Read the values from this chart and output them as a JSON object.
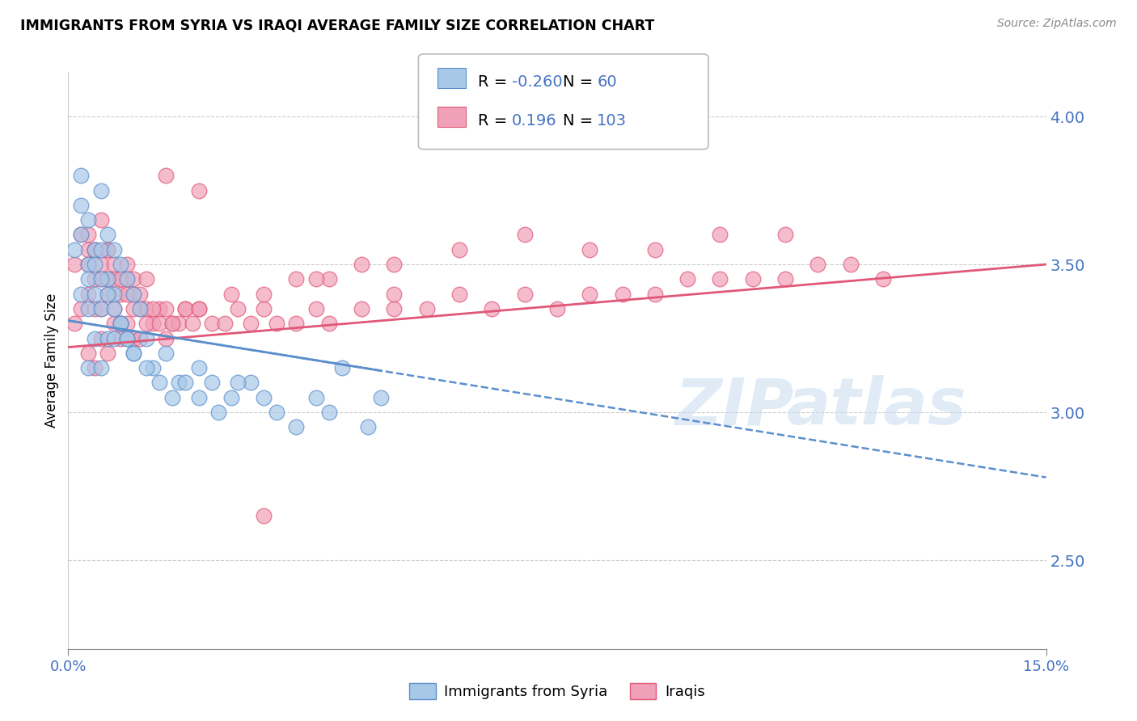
{
  "title": "IMMIGRANTS FROM SYRIA VS IRAQI AVERAGE FAMILY SIZE CORRELATION CHART",
  "source": "Source: ZipAtlas.com",
  "ylabel": "Average Family Size",
  "xmin": 0.0,
  "xmax": 0.15,
  "ymin": 2.2,
  "ymax": 4.15,
  "yticks": [
    2.5,
    3.0,
    3.5,
    4.0
  ],
  "xticks": [
    0.0,
    0.15
  ],
  "xtick_labels": [
    "0.0%",
    "15.0%"
  ],
  "color_syria": "#A8C8E8",
  "color_iraq": "#F0A0B8",
  "color_trend_syria": "#5B8FCC",
  "color_trend_iraq": "#E05878",
  "color_axis_labels": "#4472C4",
  "color_grid": "#CCCCCC",
  "R_syria": -0.26,
  "N_syria": 60,
  "R_iraq": 0.196,
  "N_iraq": 103,
  "legend_label_syria": "Immigrants from Syria",
  "legend_label_iraq": "Iraqis",
  "syria_trend_x0": 0.0,
  "syria_trend_y0": 3.31,
  "syria_trend_x1": 0.15,
  "syria_trend_y1": 2.78,
  "iraq_trend_x0": 0.0,
  "iraq_trend_y0": 3.22,
  "iraq_trend_x1": 0.15,
  "iraq_trend_y1": 3.5,
  "syria_x": [
    0.001,
    0.002,
    0.002,
    0.002,
    0.003,
    0.003,
    0.003,
    0.003,
    0.004,
    0.004,
    0.004,
    0.005,
    0.005,
    0.005,
    0.005,
    0.006,
    0.006,
    0.006,
    0.007,
    0.007,
    0.007,
    0.008,
    0.008,
    0.009,
    0.009,
    0.01,
    0.01,
    0.011,
    0.012,
    0.013,
    0.015,
    0.017,
    0.02,
    0.022,
    0.025,
    0.028,
    0.032,
    0.038,
    0.042,
    0.048,
    0.002,
    0.003,
    0.004,
    0.005,
    0.006,
    0.007,
    0.008,
    0.009,
    0.01,
    0.012,
    0.014,
    0.016,
    0.018,
    0.02,
    0.023,
    0.026,
    0.03,
    0.035,
    0.04,
    0.046
  ],
  "syria_y": [
    3.55,
    3.8,
    3.6,
    3.4,
    3.65,
    3.5,
    3.35,
    3.15,
    3.55,
    3.4,
    3.25,
    3.75,
    3.55,
    3.35,
    3.15,
    3.6,
    3.45,
    3.25,
    3.55,
    3.4,
    3.25,
    3.5,
    3.3,
    3.45,
    3.25,
    3.4,
    3.2,
    3.35,
    3.25,
    3.15,
    3.2,
    3.1,
    3.15,
    3.1,
    3.05,
    3.1,
    3.0,
    3.05,
    3.15,
    3.05,
    3.7,
    3.45,
    3.5,
    3.45,
    3.4,
    3.35,
    3.3,
    3.25,
    3.2,
    3.15,
    3.1,
    3.05,
    3.1,
    3.05,
    3.0,
    3.1,
    3.05,
    2.95,
    3.0,
    2.95
  ],
  "iraq_x": [
    0.001,
    0.001,
    0.002,
    0.002,
    0.003,
    0.003,
    0.003,
    0.004,
    0.004,
    0.004,
    0.005,
    0.005,
    0.005,
    0.006,
    0.006,
    0.006,
    0.007,
    0.007,
    0.008,
    0.008,
    0.009,
    0.009,
    0.01,
    0.01,
    0.011,
    0.012,
    0.013,
    0.014,
    0.015,
    0.016,
    0.017,
    0.018,
    0.019,
    0.02,
    0.022,
    0.024,
    0.026,
    0.028,
    0.03,
    0.032,
    0.035,
    0.038,
    0.04,
    0.045,
    0.05,
    0.055,
    0.06,
    0.065,
    0.07,
    0.075,
    0.08,
    0.085,
    0.09,
    0.095,
    0.1,
    0.105,
    0.11,
    0.115,
    0.12,
    0.125,
    0.003,
    0.004,
    0.005,
    0.006,
    0.007,
    0.008,
    0.009,
    0.01,
    0.011,
    0.012,
    0.013,
    0.014,
    0.015,
    0.016,
    0.018,
    0.02,
    0.025,
    0.03,
    0.035,
    0.04,
    0.045,
    0.05,
    0.06,
    0.07,
    0.08,
    0.09,
    0.1,
    0.11,
    0.038,
    0.05,
    0.003,
    0.004,
    0.005,
    0.006,
    0.007,
    0.008,
    0.009,
    0.01,
    0.011,
    0.012,
    0.015,
    0.02,
    0.03
  ],
  "iraq_y": [
    3.5,
    3.3,
    3.6,
    3.35,
    3.55,
    3.4,
    3.2,
    3.55,
    3.35,
    3.15,
    3.65,
    3.45,
    3.25,
    3.55,
    3.4,
    3.2,
    3.45,
    3.3,
    3.4,
    3.25,
    3.45,
    3.3,
    3.4,
    3.25,
    3.35,
    3.35,
    3.3,
    3.35,
    3.35,
    3.3,
    3.3,
    3.35,
    3.3,
    3.35,
    3.3,
    3.3,
    3.35,
    3.3,
    3.35,
    3.3,
    3.3,
    3.35,
    3.3,
    3.35,
    3.35,
    3.35,
    3.4,
    3.35,
    3.4,
    3.35,
    3.4,
    3.4,
    3.4,
    3.45,
    3.45,
    3.45,
    3.45,
    3.5,
    3.5,
    3.45,
    3.5,
    3.45,
    3.35,
    3.45,
    3.35,
    3.3,
    3.4,
    3.35,
    3.25,
    3.3,
    3.35,
    3.3,
    3.25,
    3.3,
    3.35,
    3.35,
    3.4,
    3.4,
    3.45,
    3.45,
    3.5,
    3.5,
    3.55,
    3.6,
    3.55,
    3.55,
    3.6,
    3.6,
    3.45,
    3.4,
    3.6,
    3.55,
    3.5,
    3.55,
    3.5,
    3.45,
    3.5,
    3.45,
    3.4,
    3.45,
    3.8,
    3.75,
    2.65
  ]
}
